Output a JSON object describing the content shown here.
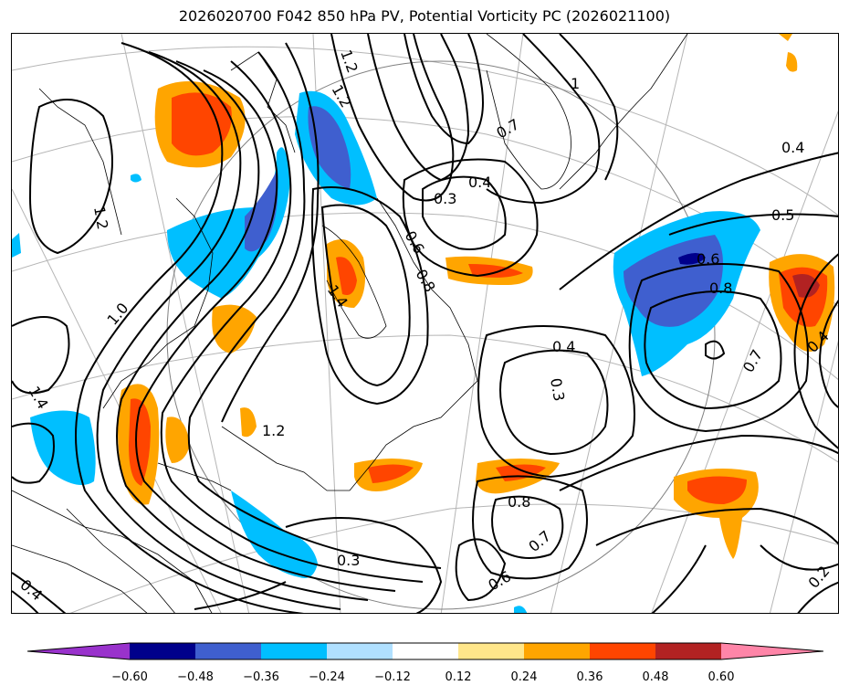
{
  "title": "2026020700 F042 850 hPa PV, Potential Vorticity PC (2026021100)",
  "colorbar": {
    "tick_labels": [
      "−0.60",
      "−0.48",
      "−0.36",
      "−0.24",
      "−0.12",
      "0.12",
      "0.24",
      "0.36",
      "0.48",
      "0.60"
    ],
    "colors": {
      "under": "#9932cc",
      "b1": "#00008b",
      "b2": "#3f5fcf",
      "b3": "#00bfff",
      "b4": "#b0e0ff",
      "mid": "#ffffff",
      "b6": "#ffe68a",
      "b7": "#ffa500",
      "b8": "#ff4500",
      "b9": "#b22222",
      "over": "#ff85a8"
    }
  },
  "contour_labels": [
    {
      "text": "1.2"
    },
    {
      "text": "1.2"
    },
    {
      "text": "1"
    },
    {
      "text": "0.7"
    },
    {
      "text": "0.4"
    },
    {
      "text": "0.3"
    },
    {
      "text": "0.4"
    },
    {
      "text": "0.5"
    },
    {
      "text": "0.6"
    },
    {
      "text": "0.8"
    },
    {
      "text": "0.7"
    },
    {
      "text": "0.4"
    },
    {
      "text": "1.0"
    },
    {
      "text": "1.4"
    },
    {
      "text": "1.2"
    },
    {
      "text": "1.4"
    },
    {
      "text": "0.4"
    },
    {
      "text": "0.3"
    },
    {
      "text": "0.8"
    },
    {
      "text": "0.7"
    },
    {
      "text": "0.6"
    },
    {
      "text": "0.3"
    },
    {
      "text": "0.4"
    },
    {
      "text": "0.2"
    },
    {
      "text": "1.2"
    },
    {
      "text": "0.6"
    },
    {
      "text": "0.8"
    }
  ]
}
